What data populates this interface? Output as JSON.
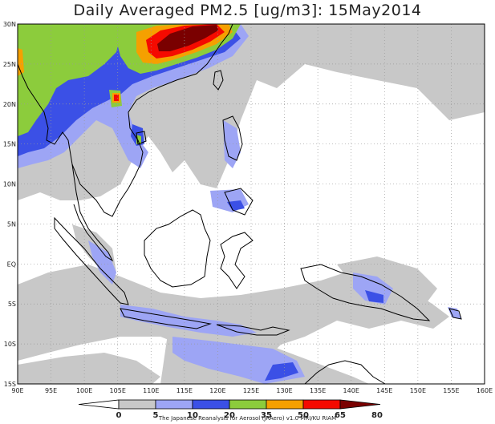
{
  "title": "Daily Averaged PM2.5 [ug/m3]: 15May2014",
  "credit": "The Japanese Reanalysis for Aerosol (JRAero) v1.0 MRI/KU RIAM",
  "map": {
    "lon_range": [
      90,
      160
    ],
    "lat_range": [
      -15,
      30
    ],
    "lon_ticks": [
      "90E",
      "95E",
      "100E",
      "105E",
      "110E",
      "115E",
      "120E",
      "125E",
      "130E",
      "135E",
      "140E",
      "145E",
      "150E",
      "155E",
      "160E"
    ],
    "lat_ticks": [
      "30N",
      "25N",
      "20N",
      "15N",
      "10N",
      "5N",
      "EQ",
      "5S",
      "10S",
      "15S"
    ],
    "grid": "dotted"
  },
  "colorbar": {
    "labels": [
      "0",
      "5",
      "10",
      "20",
      "35",
      "50",
      "65",
      "80"
    ],
    "colors": [
      "#ffffff",
      "#c8c8c8",
      "#9da5f5",
      "#3b50e6",
      "#8ccc3c",
      "#f5a000",
      "#f50a00",
      "#7a0000"
    ]
  }
}
